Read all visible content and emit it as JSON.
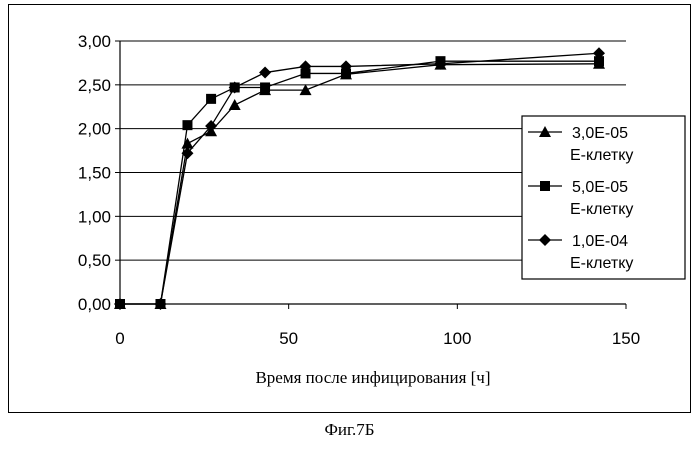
{
  "chart_data": {
    "type": "line",
    "title": "",
    "xlabel": "Время после инфицирования [ч]",
    "ylabel": "",
    "xlim": [
      0,
      150
    ],
    "ylim": [
      0,
      3
    ],
    "xticks": [
      0,
      50,
      100,
      150
    ],
    "xtick_labels": [
      "0",
      "50",
      "100",
      "150"
    ],
    "yticks": [
      0,
      0.5,
      1,
      1.5,
      2,
      2.5,
      3
    ],
    "ytick_labels": [
      "0,00",
      "0,50",
      "1,00",
      "1,50",
      "2,00",
      "2,50",
      "3,00"
    ],
    "grid": "horizontal",
    "legend_position": "right",
    "series": [
      {
        "name_line1": "3,0E-05",
        "name_line2": "Е-клетку",
        "marker": "triangle",
        "x": [
          0,
          12,
          20,
          27,
          34,
          43,
          55,
          67,
          95,
          142
        ],
        "y": [
          0.0,
          0.0,
          1.83,
          1.97,
          2.27,
          2.44,
          2.44,
          2.62,
          2.73,
          2.74
        ]
      },
      {
        "name_line1": "5,0E-05",
        "name_line2": "Е-клетку",
        "marker": "square",
        "x": [
          0,
          12,
          20,
          27,
          34,
          43,
          55,
          67,
          95,
          142
        ],
        "y": [
          0.0,
          0.0,
          2.04,
          2.34,
          2.47,
          2.47,
          2.63,
          2.63,
          2.77,
          2.77
        ]
      },
      {
        "name_line1": "1,0E-04",
        "name_line2": "Е-клетку",
        "marker": "diamond",
        "x": [
          0,
          12,
          20,
          27,
          34,
          43,
          55,
          67,
          95,
          142
        ],
        "y": [
          0.0,
          0.0,
          1.72,
          2.03,
          2.47,
          2.64,
          2.71,
          2.71,
          2.74,
          2.86
        ]
      }
    ]
  },
  "caption": "Фиг.7Б"
}
